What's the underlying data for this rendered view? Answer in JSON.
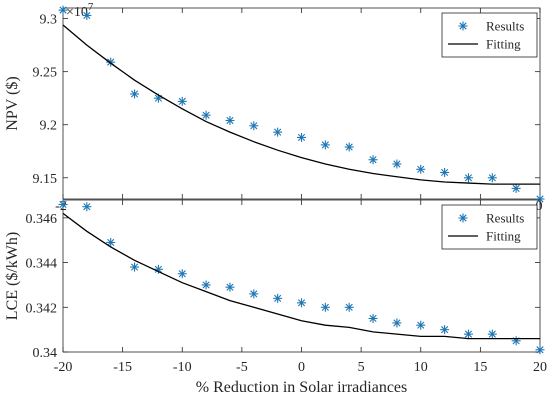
{
  "chart_data": [
    {
      "type": "scatter",
      "ylabel": "NPV ($)",
      "xlabel": "",
      "exponent_label": "×10",
      "exponent_power": "7",
      "xlim": [
        -20,
        20
      ],
      "ylim": [
        9.13,
        9.31
      ],
      "yticks": [
        9.15,
        9.2,
        9.25,
        9.3
      ],
      "ytick_labels": [
        "9.15",
        "9.2",
        "9.25",
        "9.3"
      ],
      "xtick_labels_visible": [
        "-2",
        "0"
      ],
      "legend_position": "top-right",
      "series": [
        {
          "name": "Results",
          "marker": "asterisk",
          "color": "#1f77b4",
          "x": [
            -20,
            -18,
            -16,
            -14,
            -12,
            -10,
            -8,
            -6,
            -4,
            -2,
            0,
            2,
            4,
            6,
            8,
            10,
            12,
            14,
            16,
            18,
            20
          ],
          "y": [
            9.308,
            9.303,
            9.259,
            9.229,
            9.225,
            9.222,
            9.209,
            9.204,
            9.199,
            9.193,
            9.188,
            9.181,
            9.179,
            9.167,
            9.163,
            9.158,
            9.155,
            9.15,
            9.15,
            9.14,
            9.13
          ]
        },
        {
          "name": "Fitting",
          "line": "solid",
          "color": "#000000",
          "x": [
            -20,
            -18,
            -16,
            -14,
            -12,
            -10,
            -8,
            -6,
            -4,
            -2,
            0,
            2,
            4,
            6,
            8,
            10,
            12,
            14,
            16,
            18,
            20
          ],
          "y": [
            9.294,
            9.275,
            9.258,
            9.242,
            9.228,
            9.215,
            9.203,
            9.193,
            9.184,
            9.176,
            9.169,
            9.163,
            9.158,
            9.154,
            9.151,
            9.148,
            9.146,
            9.145,
            9.144,
            9.144,
            9.144
          ]
        }
      ]
    },
    {
      "type": "scatter",
      "ylabel": "LCE ($/kWh)",
      "xlabel": "% Reduction in Solar irradiances",
      "xlim": [
        -20,
        20
      ],
      "ylim": [
        0.34,
        0.3468
      ],
      "xticks": [
        -20,
        -15,
        -10,
        -5,
        0,
        5,
        10,
        15,
        20
      ],
      "xtick_labels": [
        "-20",
        "-15",
        "-10",
        "-5",
        "0",
        "5",
        "10",
        "15",
        "20"
      ],
      "yticks": [
        0.34,
        0.342,
        0.344,
        0.346
      ],
      "ytick_labels": [
        "0.34",
        "0.342",
        "0.344",
        "0.346"
      ],
      "legend_position": "top-right",
      "series": [
        {
          "name": "Results",
          "marker": "asterisk",
          "color": "#1f77b4",
          "x": [
            -20,
            -18,
            -16,
            -14,
            -12,
            -10,
            -8,
            -6,
            -4,
            -2,
            0,
            2,
            4,
            6,
            8,
            10,
            12,
            14,
            16,
            18,
            20
          ],
          "y": [
            0.3466,
            0.3465,
            0.3449,
            0.3438,
            0.3437,
            0.3435,
            0.343,
            0.3429,
            0.3426,
            0.3424,
            0.3422,
            0.342,
            0.342,
            0.3415,
            0.3413,
            0.3412,
            0.341,
            0.3408,
            0.3408,
            0.3405,
            0.3401
          ]
        },
        {
          "name": "Fitting",
          "line": "solid",
          "color": "#000000",
          "x": [
            -20,
            -18,
            -16,
            -14,
            -12,
            -10,
            -8,
            -6,
            -4,
            -2,
            0,
            2,
            4,
            6,
            8,
            10,
            12,
            14,
            16,
            18,
            20
          ],
          "y": [
            0.3462,
            0.3454,
            0.3447,
            0.3441,
            0.3436,
            0.3431,
            0.3427,
            0.3423,
            0.342,
            0.3417,
            0.3414,
            0.3412,
            0.3411,
            0.3409,
            0.3408,
            0.3407,
            0.3407,
            0.3406,
            0.3406,
            0.3406,
            0.3406
          ]
        }
      ]
    }
  ]
}
